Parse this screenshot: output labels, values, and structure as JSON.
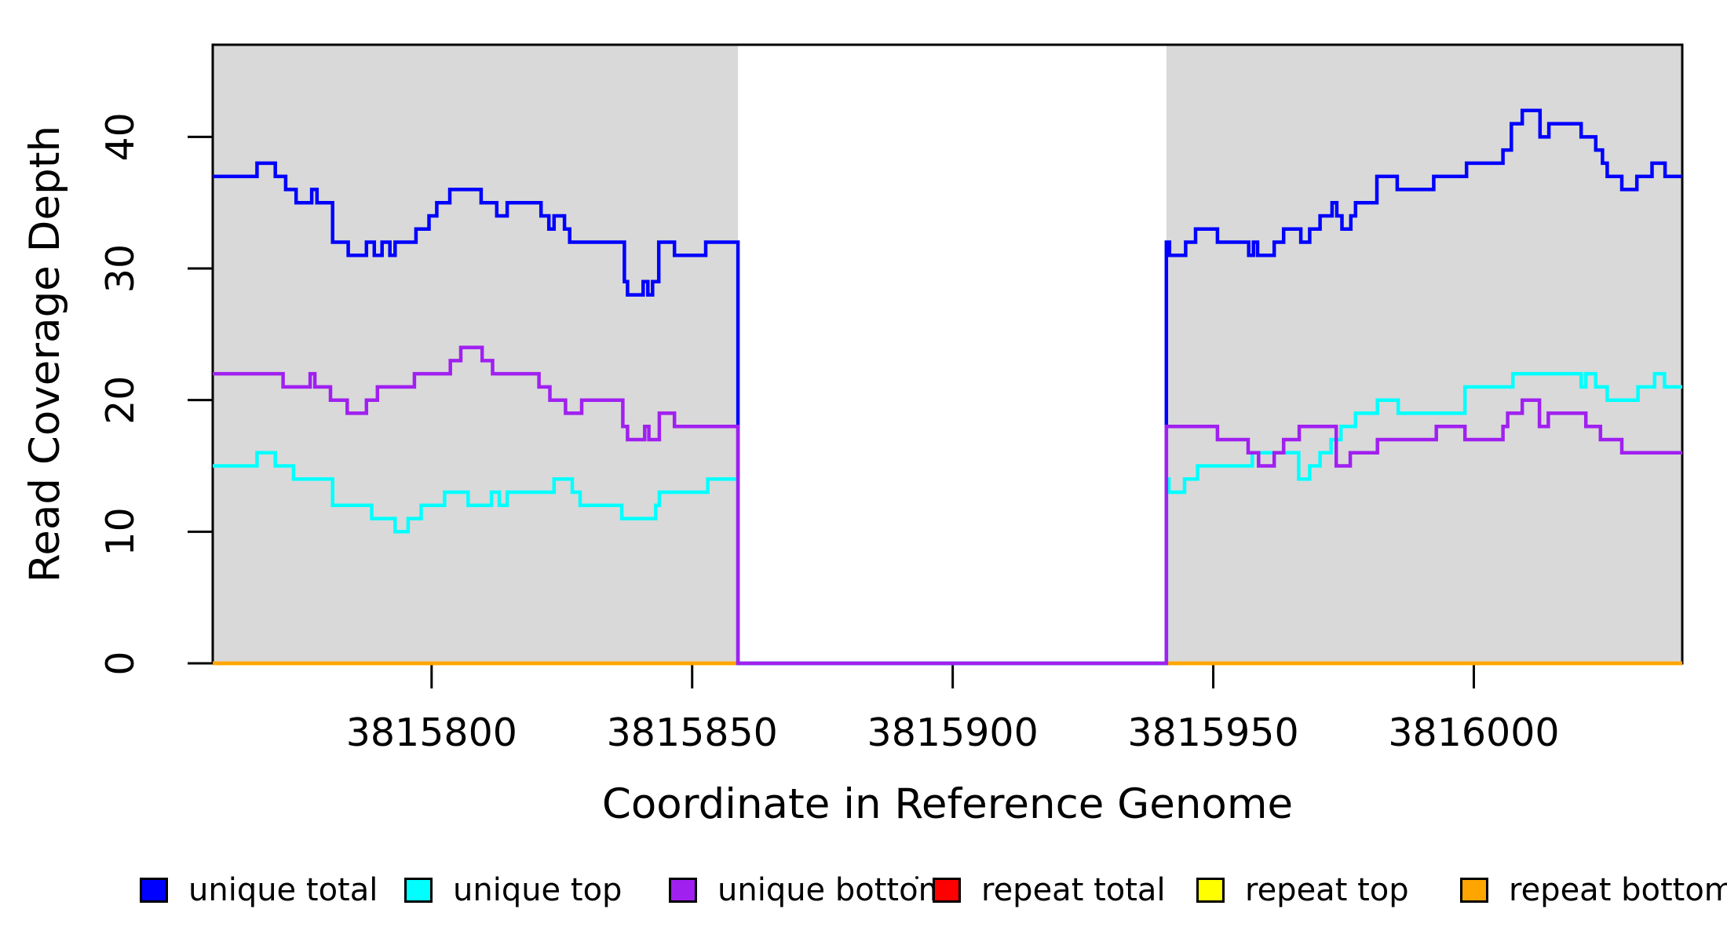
{
  "chart_data": {
    "type": "line",
    "title": "",
    "xlabel": "Coordinate in Reference Genome",
    "ylabel": "Read Coverage Depth",
    "step": true,
    "grid": false,
    "xlim": [
      3815758,
      3816040
    ],
    "ylim": [
      0,
      47
    ],
    "x_ticks": [
      3815800,
      3815850,
      3815900,
      3815950,
      3816000
    ],
    "x_tick_labels": [
      "3815800",
      "3815850",
      "3815900",
      "3815950",
      "3816000"
    ],
    "y_ticks": [
      0,
      10,
      20,
      30,
      40
    ],
    "y_tick_labels": [
      "0",
      "10",
      "20",
      "30",
      "40"
    ],
    "background_regions": [
      {
        "name": "covered-region-left",
        "x0": 3815758,
        "x1": 3815858.8,
        "color": "#D9D9D9"
      },
      {
        "name": "covered-region-right",
        "x0": 3815941,
        "x1": 3816040,
        "color": "#D9D9D9"
      }
    ],
    "gap_region": {
      "name": "uncovered-gap",
      "x0": 3815858.8,
      "x1": 3815941,
      "color": "#FFFFFF"
    },
    "legend_position": "bottom",
    "draw_order": [
      3,
      4,
      5,
      0,
      1,
      2
    ],
    "series": [
      {
        "name": "unique total",
        "color": "#0000FF",
        "points": [
          [
            3815758,
            37
          ],
          [
            3815766.5,
            38
          ],
          [
            3815770,
            37
          ],
          [
            3815772,
            36
          ],
          [
            3815774,
            35
          ],
          [
            3815777,
            36
          ],
          [
            3815778,
            35
          ],
          [
            3815781,
            32
          ],
          [
            3815784,
            31
          ],
          [
            3815787.5,
            32
          ],
          [
            3815789,
            31
          ],
          [
            3815790.5,
            32
          ],
          [
            3815792,
            31
          ],
          [
            3815793,
            32
          ],
          [
            3815797,
            33
          ],
          [
            3815799.5,
            34
          ],
          [
            3815801,
            35
          ],
          [
            3815803.5,
            36
          ],
          [
            3815809.5,
            35
          ],
          [
            3815812.5,
            34
          ],
          [
            3815814.5,
            35
          ],
          [
            3815821,
            34
          ],
          [
            3815822.5,
            33
          ],
          [
            3815823.5,
            34
          ],
          [
            3815825.5,
            33
          ],
          [
            3815826.5,
            32
          ],
          [
            3815837,
            29
          ],
          [
            3815837.6,
            28
          ],
          [
            3815840.6,
            29
          ],
          [
            3815841.5,
            28
          ],
          [
            3815842.4,
            29
          ],
          [
            3815843.6,
            32
          ],
          [
            3815846.6,
            31
          ],
          [
            3815852.6,
            32
          ],
          [
            3815858.8,
            0
          ],
          [
            3815941,
            32
          ],
          [
            3815941.6,
            31
          ],
          [
            3815944.7,
            32
          ],
          [
            3815946.6,
            33
          ],
          [
            3815950.8,
            32
          ],
          [
            3815956.8,
            31
          ],
          [
            3815957.7,
            32
          ],
          [
            3815958.5,
            31
          ],
          [
            3815961.7,
            32
          ],
          [
            3815963.5,
            33
          ],
          [
            3815966.8,
            32
          ],
          [
            3815968.5,
            33
          ],
          [
            3815970.5,
            34
          ],
          [
            3815972.8,
            35
          ],
          [
            3815973.7,
            34
          ],
          [
            3815974.7,
            33
          ],
          [
            3815976.4,
            34
          ],
          [
            3815977.3,
            35
          ],
          [
            3815981.4,
            37
          ],
          [
            3815985.3,
            36
          ],
          [
            3815992.3,
            37
          ],
          [
            3815998.6,
            38
          ],
          [
            3816005.6,
            39
          ],
          [
            3816007.2,
            41
          ],
          [
            3816009.3,
            42
          ],
          [
            3816012.7,
            40
          ],
          [
            3816014.4,
            41
          ],
          [
            3816020.6,
            40
          ],
          [
            3816023.4,
            39
          ],
          [
            3816024.7,
            38
          ],
          [
            3816025.6,
            37
          ],
          [
            3816028.4,
            36
          ],
          [
            3816031.3,
            37
          ],
          [
            3816034.2,
            38
          ],
          [
            3816036.7,
            37
          ],
          [
            3816040,
            37
          ]
        ]
      },
      {
        "name": "unique top",
        "color": "#00FFFF",
        "points": [
          [
            3815758,
            15
          ],
          [
            3815766.5,
            16
          ],
          [
            3815770,
            15
          ],
          [
            3815773.5,
            14
          ],
          [
            3815781,
            12
          ],
          [
            3815788.5,
            11
          ],
          [
            3815793,
            10
          ],
          [
            3815795.5,
            11
          ],
          [
            3815798,
            12
          ],
          [
            3815802.5,
            13
          ],
          [
            3815807,
            12
          ],
          [
            3815811.5,
            13
          ],
          [
            3815813,
            12
          ],
          [
            3815814.5,
            13
          ],
          [
            3815823.5,
            14
          ],
          [
            3815827,
            13
          ],
          [
            3815828.5,
            12
          ],
          [
            3815836.5,
            11
          ],
          [
            3815843,
            12
          ],
          [
            3815843.7,
            13
          ],
          [
            3815853,
            14
          ],
          [
            3815858.8,
            0
          ],
          [
            3815941,
            14
          ],
          [
            3815941.5,
            13
          ],
          [
            3815944.5,
            14
          ],
          [
            3815947,
            15
          ],
          [
            3815957.5,
            16
          ],
          [
            3815966.4,
            14
          ],
          [
            3815968.5,
            15
          ],
          [
            3815970.5,
            16
          ],
          [
            3815972.6,
            17
          ],
          [
            3815974.5,
            18
          ],
          [
            3815977.3,
            19
          ],
          [
            3815981.5,
            20
          ],
          [
            3815985.5,
            19
          ],
          [
            3815998.3,
            21
          ],
          [
            3816007.5,
            22
          ],
          [
            3816020.6,
            21
          ],
          [
            3816021.5,
            22
          ],
          [
            3816023.4,
            21
          ],
          [
            3816025.6,
            20
          ],
          [
            3816031.5,
            21
          ],
          [
            3816034.7,
            22
          ],
          [
            3816036.6,
            21
          ],
          [
            3816040,
            21
          ]
        ]
      },
      {
        "name": "unique bottom",
        "color": "#A020F0",
        "points": [
          [
            3815758,
            22
          ],
          [
            3815771.5,
            21
          ],
          [
            3815776.7,
            22
          ],
          [
            3815777.6,
            21
          ],
          [
            3815780.6,
            20
          ],
          [
            3815783.8,
            19
          ],
          [
            3815787.5,
            20
          ],
          [
            3815789.6,
            21
          ],
          [
            3815796.7,
            22
          ],
          [
            3815803.6,
            23
          ],
          [
            3815805.6,
            24
          ],
          [
            3815809.7,
            23
          ],
          [
            3815811.7,
            22
          ],
          [
            3815820.6,
            21
          ],
          [
            3815822.7,
            20
          ],
          [
            3815825.7,
            19
          ],
          [
            3815828.8,
            20
          ],
          [
            3815836.7,
            18
          ],
          [
            3815837.6,
            17
          ],
          [
            3815840.9,
            18
          ],
          [
            3815841.7,
            17
          ],
          [
            3815843.7,
            19
          ],
          [
            3815846.6,
            18
          ],
          [
            3815858.8,
            0
          ],
          [
            3815941,
            18
          ],
          [
            3815950.8,
            17
          ],
          [
            3815956.7,
            16
          ],
          [
            3815958.7,
            15
          ],
          [
            3815961.7,
            16
          ],
          [
            3815963.5,
            17
          ],
          [
            3815966.5,
            18
          ],
          [
            3815973.6,
            15
          ],
          [
            3815976.3,
            16
          ],
          [
            3815981.5,
            17
          ],
          [
            3815992.8,
            18
          ],
          [
            3815998.3,
            17
          ],
          [
            3816005.6,
            18
          ],
          [
            3816006.5,
            19
          ],
          [
            3816009.3,
            20
          ],
          [
            3816012.6,
            18
          ],
          [
            3816014.3,
            19
          ],
          [
            3816021.5,
            18
          ],
          [
            3816024.3,
            17
          ],
          [
            3816028.4,
            16
          ],
          [
            3816040,
            16
          ]
        ]
      },
      {
        "name": "repeat total",
        "color": "#FF0000",
        "points": [
          [
            3815758,
            0
          ],
          [
            3816040,
            0
          ]
        ]
      },
      {
        "name": "repeat top",
        "color": "#FFFF00",
        "points": [
          [
            3815758,
            0
          ],
          [
            3816040,
            0
          ]
        ]
      },
      {
        "name": "repeat bottom",
        "color": "#FFA500",
        "points": [
          [
            3815758,
            0
          ],
          [
            3816040,
            0
          ]
        ]
      }
    ]
  },
  "legend": {
    "items": [
      {
        "label": "unique total",
        "color": "#0000FF"
      },
      {
        "label": "unique top",
        "color": "#00FFFF"
      },
      {
        "label": "unique bottom",
        "color": "#A020F0"
      },
      {
        "label": "repeat total",
        "color": "#FF0000"
      },
      {
        "label": "repeat top",
        "color": "#FFFF00"
      },
      {
        "label": "repeat bottom",
        "color": "#FFA500"
      }
    ]
  }
}
